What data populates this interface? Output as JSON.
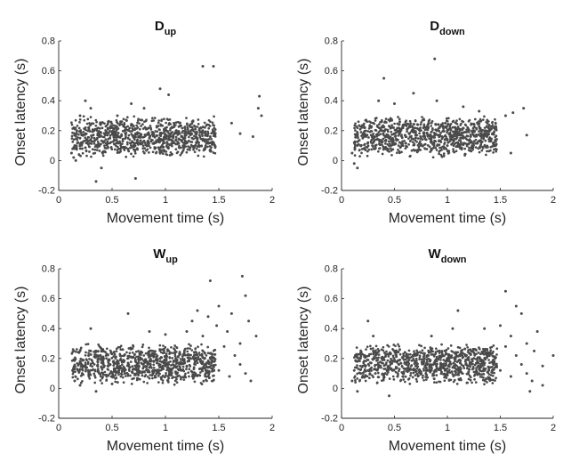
{
  "chart_data": [
    {
      "type": "scatter",
      "title_main": "D",
      "title_sub": "up",
      "xlabel": "Movement time (s)",
      "ylabel": "Onset latency (s)",
      "xlim": [
        0,
        2
      ],
      "ylim": [
        -0.2,
        0.8
      ],
      "xticks": [
        0,
        0.5,
        1,
        1.5,
        2
      ],
      "yticks": [
        -0.2,
        0,
        0.2,
        0.4,
        0.6,
        0.8
      ],
      "xtick_labels": [
        "0",
        "0.5",
        "1",
        "1.5",
        "2"
      ],
      "ytick_labels": [
        "-0.2",
        "0",
        "0.2",
        "0.4",
        "0.6",
        "0.8"
      ],
      "grid": false,
      "marker_color": "#4a4a4a",
      "points": [
        [
          0.12,
          0.05
        ],
        [
          0.15,
          0.1
        ],
        [
          0.18,
          0.12
        ],
        [
          0.2,
          0.15
        ],
        [
          0.22,
          0.08
        ],
        [
          0.25,
          0.18
        ],
        [
          0.28,
          0.22
        ],
        [
          0.3,
          0.14
        ],
        [
          0.33,
          0.2
        ],
        [
          0.35,
          0.1
        ],
        [
          0.38,
          0.16
        ],
        [
          0.4,
          0.25
        ],
        [
          0.42,
          0.12
        ],
        [
          0.45,
          0.19
        ],
        [
          0.48,
          0.15
        ],
        [
          0.5,
          0.22
        ],
        [
          0.52,
          0.11
        ],
        [
          0.55,
          0.17
        ],
        [
          0.58,
          0.26
        ],
        [
          0.6,
          0.13
        ],
        [
          0.62,
          0.2
        ],
        [
          0.65,
          0.15
        ],
        [
          0.68,
          0.24
        ],
        [
          0.7,
          0.1
        ],
        [
          0.72,
          0.18
        ],
        [
          0.75,
          0.16
        ],
        [
          0.78,
          0.27
        ],
        [
          0.8,
          0.13
        ],
        [
          0.82,
          0.21
        ],
        [
          0.85,
          0.15
        ],
        [
          0.88,
          0.19
        ],
        [
          0.9,
          0.12
        ],
        [
          0.92,
          0.23
        ],
        [
          0.95,
          0.17
        ],
        [
          0.98,
          0.14
        ],
        [
          1.0,
          0.2
        ],
        [
          1.02,
          0.11
        ],
        [
          1.05,
          0.18
        ],
        [
          1.08,
          0.25
        ],
        [
          1.1,
          0.14
        ],
        [
          1.12,
          0.19
        ],
        [
          1.15,
          0.16
        ],
        [
          1.18,
          0.22
        ],
        [
          1.2,
          0.12
        ],
        [
          1.22,
          0.18
        ],
        [
          1.25,
          0.15
        ],
        [
          1.28,
          0.21
        ],
        [
          1.3,
          0.13
        ],
        [
          1.32,
          0.17
        ],
        [
          1.35,
          0.2
        ],
        [
          1.38,
          0.14
        ],
        [
          1.4,
          0.18
        ],
        [
          1.42,
          0.16
        ],
        [
          1.45,
          0.12
        ],
        [
          0.3,
          0.35
        ],
        [
          0.55,
          0.3
        ],
        [
          0.8,
          0.35
        ],
        [
          0.68,
          0.38
        ],
        [
          0.95,
          0.48
        ],
        [
          1.03,
          0.44
        ],
        [
          1.35,
          0.63
        ],
        [
          1.45,
          0.63
        ],
        [
          1.88,
          0.43
        ],
        [
          1.9,
          0.3
        ],
        [
          1.87,
          0.35
        ],
        [
          1.62,
          0.25
        ],
        [
          1.7,
          0.18
        ],
        [
          1.82,
          0.16
        ],
        [
          0.4,
          -0.05
        ],
        [
          0.35,
          -0.14
        ],
        [
          0.72,
          -0.12
        ],
        [
          0.16,
          0.0
        ],
        [
          0.14,
          0.02
        ],
        [
          0.2,
          0.3
        ],
        [
          0.25,
          0.4
        ],
        [
          0.17,
          0.2
        ]
      ]
    },
    {
      "type": "scatter",
      "title_main": "D",
      "title_sub": "down",
      "xlabel": "Movement time (s)",
      "ylabel": "Onset latency (s)",
      "xlim": [
        0,
        2
      ],
      "ylim": [
        -0.2,
        0.8
      ],
      "xticks": [
        0,
        0.5,
        1,
        1.5,
        2
      ],
      "yticks": [
        -0.2,
        0,
        0.2,
        0.4,
        0.6,
        0.8
      ],
      "xtick_labels": [
        "0",
        "0.5",
        "1",
        "1.5",
        "2"
      ],
      "ytick_labels": [
        "-0.2",
        "0",
        "0.2",
        "0.4",
        "0.6",
        "0.8"
      ],
      "grid": false,
      "marker_color": "#4a4a4a",
      "points": [
        [
          0.1,
          0.05
        ],
        [
          0.12,
          0.12
        ],
        [
          0.15,
          0.18
        ],
        [
          0.18,
          0.1
        ],
        [
          0.2,
          0.15
        ],
        [
          0.22,
          0.22
        ],
        [
          0.25,
          0.12
        ],
        [
          0.28,
          0.17
        ],
        [
          0.3,
          0.25
        ],
        [
          0.32,
          0.1
        ],
        [
          0.35,
          0.14
        ],
        [
          0.38,
          0.2
        ],
        [
          0.4,
          0.08
        ],
        [
          0.42,
          0.16
        ],
        [
          0.45,
          0.23
        ],
        [
          0.48,
          0.12
        ],
        [
          0.5,
          0.18
        ],
        [
          0.52,
          0.14
        ],
        [
          0.55,
          0.26
        ],
        [
          0.58,
          0.1
        ],
        [
          0.6,
          0.17
        ],
        [
          0.62,
          0.21
        ],
        [
          0.65,
          0.13
        ],
        [
          0.68,
          0.19
        ],
        [
          0.7,
          0.15
        ],
        [
          0.72,
          0.24
        ],
        [
          0.75,
          0.11
        ],
        [
          0.78,
          0.18
        ],
        [
          0.8,
          0.14
        ],
        [
          0.82,
          0.22
        ],
        [
          0.85,
          0.12
        ],
        [
          0.88,
          0.17
        ],
        [
          0.9,
          0.2
        ],
        [
          0.92,
          0.13
        ],
        [
          0.95,
          0.16
        ],
        [
          0.98,
          0.25
        ],
        [
          1.0,
          0.1
        ],
        [
          1.02,
          0.18
        ],
        [
          1.05,
          0.14
        ],
        [
          1.08,
          0.21
        ],
        [
          1.1,
          0.12
        ],
        [
          1.12,
          0.17
        ],
        [
          1.15,
          0.15
        ],
        [
          1.18,
          0.19
        ],
        [
          1.2,
          0.11
        ],
        [
          1.22,
          0.16
        ],
        [
          1.25,
          0.2
        ],
        [
          1.3,
          0.13
        ],
        [
          1.35,
          0.17
        ],
        [
          1.4,
          0.14
        ],
        [
          0.5,
          0.38
        ],
        [
          0.88,
          0.68
        ],
        [
          0.68,
          0.45
        ],
        [
          0.9,
          0.4
        ],
        [
          1.15,
          0.36
        ],
        [
          1.3,
          0.33
        ],
        [
          1.55,
          0.3
        ],
        [
          1.62,
          0.32
        ],
        [
          1.72,
          0.35
        ],
        [
          1.75,
          0.17
        ],
        [
          1.6,
          0.05
        ],
        [
          1.45,
          0.1
        ],
        [
          0.12,
          -0.02
        ],
        [
          0.15,
          -0.05
        ],
        [
          0.35,
          0.4
        ],
        [
          0.4,
          0.55
        ]
      ]
    },
    {
      "type": "scatter",
      "title_main": "W",
      "title_sub": "up",
      "xlabel": "Movement time (s)",
      "ylabel": "Onset latency (s)",
      "xlim": [
        0,
        2
      ],
      "ylim": [
        -0.2,
        0.8
      ],
      "xticks": [
        0,
        0.5,
        1,
        1.5,
        2
      ],
      "yticks": [
        -0.2,
        0,
        0.2,
        0.4,
        0.6,
        0.8
      ],
      "xtick_labels": [
        "0",
        "0.5",
        "1",
        "1.5",
        "2"
      ],
      "ytick_labels": [
        "-0.2",
        "0",
        "0.2",
        "0.4",
        "0.6",
        "0.8"
      ],
      "grid": false,
      "marker_color": "#4a4a4a",
      "points": [
        [
          0.15,
          0.05
        ],
        [
          0.18,
          0.12
        ],
        [
          0.2,
          0.18
        ],
        [
          0.22,
          0.1
        ],
        [
          0.25,
          0.15
        ],
        [
          0.28,
          0.22
        ],
        [
          0.3,
          0.12
        ],
        [
          0.32,
          0.17
        ],
        [
          0.35,
          0.25
        ],
        [
          0.38,
          0.1
        ],
        [
          0.4,
          0.14
        ],
        [
          0.42,
          0.2
        ],
        [
          0.45,
          0.08
        ],
        [
          0.48,
          0.16
        ],
        [
          0.5,
          0.23
        ],
        [
          0.52,
          0.12
        ],
        [
          0.55,
          0.18
        ],
        [
          0.58,
          0.14
        ],
        [
          0.6,
          0.26
        ],
        [
          0.62,
          0.1
        ],
        [
          0.65,
          0.17
        ],
        [
          0.68,
          0.21
        ],
        [
          0.7,
          0.13
        ],
        [
          0.72,
          0.19
        ],
        [
          0.75,
          0.15
        ],
        [
          0.78,
          0.24
        ],
        [
          0.8,
          0.11
        ],
        [
          0.82,
          0.18
        ],
        [
          0.85,
          0.14
        ],
        [
          0.88,
          0.22
        ],
        [
          0.9,
          0.12
        ],
        [
          0.92,
          0.17
        ],
        [
          0.95,
          0.2
        ],
        [
          0.98,
          0.13
        ],
        [
          1.0,
          0.16
        ],
        [
          1.02,
          0.25
        ],
        [
          1.05,
          0.1
        ],
        [
          1.08,
          0.18
        ],
        [
          1.1,
          0.14
        ],
        [
          1.12,
          0.21
        ],
        [
          1.15,
          0.12
        ],
        [
          1.18,
          0.17
        ],
        [
          1.2,
          0.15
        ],
        [
          1.22,
          0.19
        ],
        [
          1.25,
          0.11
        ],
        [
          1.28,
          0.16
        ],
        [
          1.3,
          0.2
        ],
        [
          1.32,
          0.13
        ],
        [
          1.35,
          0.17
        ],
        [
          1.4,
          0.14
        ],
        [
          1.45,
          0.2
        ],
        [
          1.5,
          0.12
        ],
        [
          1.55,
          0.28
        ],
        [
          1.6,
          0.08
        ],
        [
          1.65,
          0.22
        ],
        [
          1.7,
          0.16
        ],
        [
          1.75,
          0.1
        ],
        [
          1.8,
          0.05
        ],
        [
          1.2,
          0.38
        ],
        [
          1.25,
          0.45
        ],
        [
          1.3,
          0.52
        ],
        [
          1.35,
          0.35
        ],
        [
          1.4,
          0.48
        ],
        [
          1.42,
          0.72
        ],
        [
          1.48,
          0.42
        ],
        [
          1.5,
          0.55
        ],
        [
          1.58,
          0.38
        ],
        [
          1.62,
          0.5
        ],
        [
          1.72,
          0.75
        ],
        [
          1.75,
          0.62
        ],
        [
          1.78,
          0.45
        ],
        [
          1.85,
          0.35
        ],
        [
          1.7,
          0.3
        ],
        [
          0.65,
          0.5
        ],
        [
          0.85,
          0.38
        ],
        [
          1.0,
          0.36
        ],
        [
          0.3,
          0.4
        ],
        [
          0.2,
          0.02
        ],
        [
          0.35,
          -0.02
        ],
        [
          0.5,
          0.03
        ]
      ]
    },
    {
      "type": "scatter",
      "title_main": "W",
      "title_sub": "down",
      "xlabel": "Movement time (s)",
      "ylabel": "Onset latency (s)",
      "xlim": [
        0,
        2
      ],
      "ylim": [
        -0.2,
        0.8
      ],
      "xticks": [
        0,
        0.5,
        1,
        1.5,
        2
      ],
      "yticks": [
        -0.2,
        0,
        0.2,
        0.4,
        0.6,
        0.8
      ],
      "xtick_labels": [
        "0",
        "0.5",
        "1",
        "1.5",
        "2"
      ],
      "ytick_labels": [
        "-0.2",
        "0",
        "0.2",
        "0.4",
        "0.6",
        "0.8"
      ],
      "grid": false,
      "marker_color": "#4a4a4a",
      "points": [
        [
          0.1,
          0.05
        ],
        [
          0.12,
          0.12
        ],
        [
          0.15,
          0.18
        ],
        [
          0.18,
          0.1
        ],
        [
          0.2,
          0.15
        ],
        [
          0.22,
          0.22
        ],
        [
          0.25,
          0.12
        ],
        [
          0.28,
          0.17
        ],
        [
          0.3,
          0.25
        ],
        [
          0.32,
          0.1
        ],
        [
          0.35,
          0.14
        ],
        [
          0.38,
          0.2
        ],
        [
          0.4,
          0.08
        ],
        [
          0.42,
          0.16
        ],
        [
          0.45,
          0.23
        ],
        [
          0.48,
          0.12
        ],
        [
          0.5,
          0.18
        ],
        [
          0.52,
          0.14
        ],
        [
          0.55,
          0.26
        ],
        [
          0.58,
          0.1
        ],
        [
          0.6,
          0.17
        ],
        [
          0.62,
          0.21
        ],
        [
          0.65,
          0.13
        ],
        [
          0.68,
          0.19
        ],
        [
          0.7,
          0.15
        ],
        [
          0.72,
          0.24
        ],
        [
          0.75,
          0.11
        ],
        [
          0.78,
          0.18
        ],
        [
          0.8,
          0.14
        ],
        [
          0.82,
          0.22
        ],
        [
          0.85,
          0.12
        ],
        [
          0.88,
          0.17
        ],
        [
          0.9,
          0.2
        ],
        [
          0.92,
          0.13
        ],
        [
          0.95,
          0.16
        ],
        [
          0.98,
          0.25
        ],
        [
          1.0,
          0.1
        ],
        [
          1.02,
          0.18
        ],
        [
          1.05,
          0.14
        ],
        [
          1.08,
          0.21
        ],
        [
          1.1,
          0.12
        ],
        [
          1.12,
          0.17
        ],
        [
          1.15,
          0.15
        ],
        [
          1.18,
          0.19
        ],
        [
          1.2,
          0.11
        ],
        [
          1.22,
          0.16
        ],
        [
          1.25,
          0.2
        ],
        [
          1.3,
          0.13
        ],
        [
          1.35,
          0.17
        ],
        [
          1.4,
          0.14
        ],
        [
          1.45,
          0.2
        ],
        [
          1.5,
          0.12
        ],
        [
          1.55,
          0.28
        ],
        [
          1.6,
          0.08
        ],
        [
          1.65,
          0.22
        ],
        [
          1.7,
          0.16
        ],
        [
          1.75,
          0.1
        ],
        [
          1.8,
          0.05
        ],
        [
          1.55,
          0.65
        ],
        [
          1.5,
          0.42
        ],
        [
          1.65,
          0.55
        ],
        [
          1.7,
          0.5
        ],
        [
          1.35,
          0.4
        ],
        [
          1.6,
          0.35
        ],
        [
          1.75,
          0.3
        ],
        [
          1.82,
          0.25
        ],
        [
          1.9,
          0.15
        ],
        [
          2.0,
          0.22
        ],
        [
          1.85,
          0.38
        ],
        [
          1.1,
          0.52
        ],
        [
          1.05,
          0.4
        ],
        [
          0.85,
          0.35
        ],
        [
          0.3,
          0.35
        ],
        [
          0.25,
          0.45
        ],
        [
          0.15,
          -0.02
        ],
        [
          0.45,
          -0.05
        ],
        [
          1.78,
          -0.02
        ],
        [
          1.9,
          0.02
        ]
      ]
    }
  ]
}
